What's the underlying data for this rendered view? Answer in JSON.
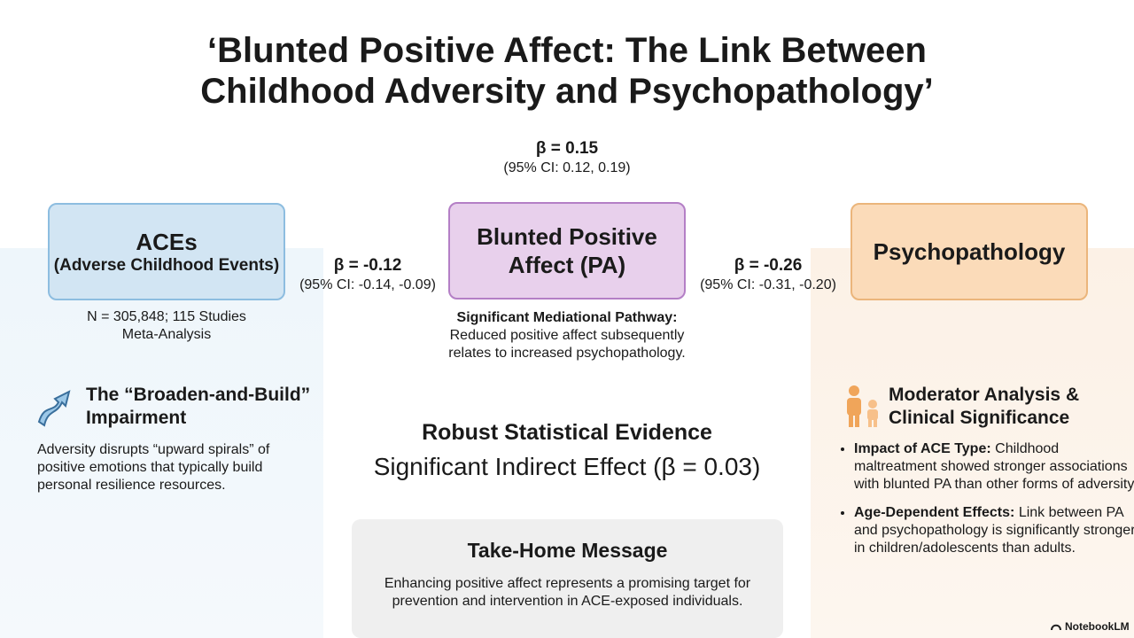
{
  "title_lines": [
    "‘Blunted Positive Affect: The Link Between",
    "Childhood Adversity and Psychopathology’"
  ],
  "direct_path": {
    "beta": "β = 0.15",
    "ci": "(95% CI: 0.12, 0.19)"
  },
  "nodes": [
    {
      "label": "ACEs",
      "sublabel": "(Adverse Childhood Events)",
      "notes": [
        "N = 305,848; 115 Studies",
        "Meta-Analysis"
      ]
    },
    {
      "label": "Blunted Positive Affect (PA)"
    },
    {
      "label": "Psychopathology"
    }
  ],
  "paths": [
    {
      "beta": "β = -0.12",
      "ci": "(95% CI: -0.14, -0.09)"
    },
    {
      "beta": "β = -0.26",
      "ci": "(95% CI: -0.31, -0.20)"
    }
  ],
  "mediation_note": {
    "heading": "Significant Mediational Pathway:",
    "text": "Reduced positive affect subsequently relates to increased psychopathology."
  },
  "left_panel": {
    "heading": "The “Broaden-and-Build” Impairment",
    "text": "Adversity disrupts “upward spirals” of positive emotions that typically build personal resilience resources."
  },
  "center": {
    "heading": "Robust Statistical Evidence",
    "subheading": "Significant Indirect Effect (β = 0.03)"
  },
  "take_home": {
    "heading": "Take-Home Message",
    "text": "Enhancing positive affect represents a promising target for prevention and intervention in ACE-exposed individuals."
  },
  "right_panel": {
    "heading": "Moderator Analysis & Clinical Significance",
    "bullets": [
      {
        "label": "Impact of ACE Type:",
        "text": "Childhood maltreatment showed stronger associations with blunted PA than other forms of adversity."
      },
      {
        "label": "Age-Dependent Effects:",
        "text": "Link between PA and psychopathology is significantly stronger in children/adolescents than adults."
      }
    ]
  },
  "watermark": "NotebookLM"
}
